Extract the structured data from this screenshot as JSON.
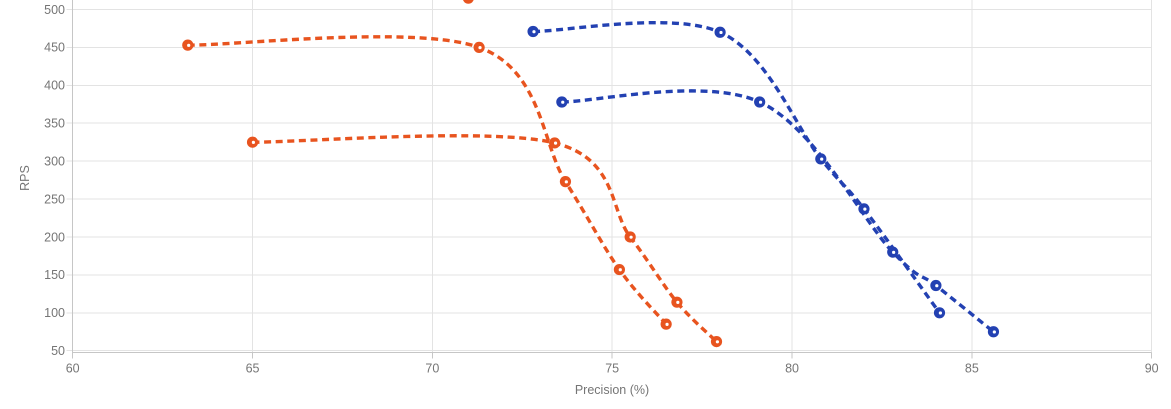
{
  "chart_data": {
    "type": "line",
    "title": "",
    "xlabel": "Precision (%)",
    "ylabel": "RPS",
    "xlim": [
      60,
      90
    ],
    "ylim_visible": [
      50,
      500
    ],
    "x_ticks": [
      60,
      65,
      70,
      75,
      80,
      85,
      90
    ],
    "y_ticks": [
      50,
      100,
      150,
      200,
      250,
      300,
      350,
      400,
      450,
      500
    ],
    "grid": true,
    "line_style": "dashed",
    "curve": "smooth-spline",
    "marker": "open-circle",
    "legend_position": "cropped-above-top-edge",
    "series": [
      {
        "name": "orange-upper",
        "color": "#E8541F",
        "x": [
          63.2,
          71.3,
          73.7,
          75.2,
          76.5
        ],
        "y": [
          453,
          450,
          273,
          157,
          85
        ]
      },
      {
        "name": "orange-lower",
        "color": "#E8541F",
        "x": [
          65.0,
          73.4,
          75.5,
          76.8,
          77.9
        ],
        "y": [
          325,
          324,
          200,
          114,
          62
        ]
      },
      {
        "name": "blue-upper",
        "color": "#2341B2",
        "x": [
          72.8,
          78.0,
          80.8,
          82.0,
          84.1
        ],
        "y": [
          471,
          470,
          303,
          237,
          100
        ]
      },
      {
        "name": "blue-lower",
        "color": "#2341B2",
        "x": [
          73.6,
          79.1,
          82.8,
          84.0,
          85.6
        ],
        "y": [
          378,
          378,
          180,
          136,
          75
        ]
      }
    ],
    "annotations": [
      {
        "type": "partial-marker-cropped-at-top",
        "precision": 71.0,
        "rps": 515,
        "color": "#E8541F"
      }
    ]
  },
  "colors": {
    "orange_series": "#E8541F",
    "blue_series": "#2341B2",
    "gridline": "#E3E3E3",
    "axis_line": "#C6C6C6",
    "tick_label": "#757575",
    "background": "#FFFFFF"
  }
}
